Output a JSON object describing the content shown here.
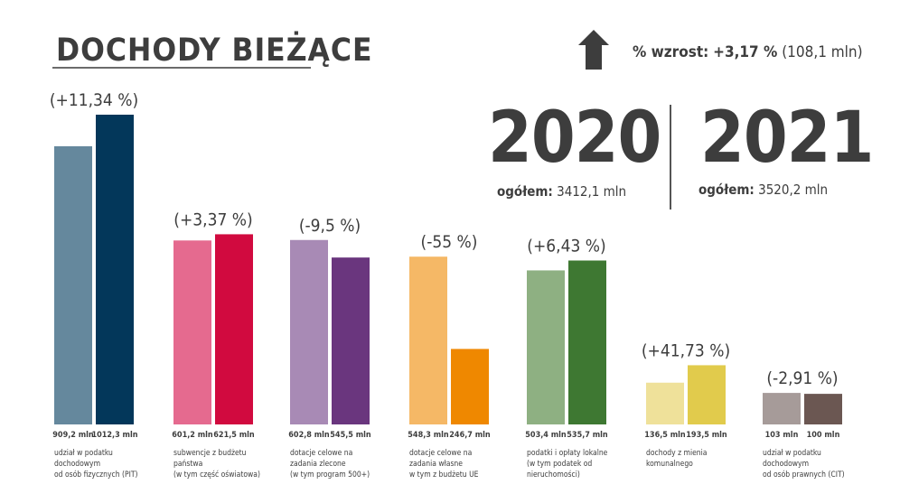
{
  "header": {
    "title": "DOCHODY BIEŻĄCE",
    "growth_label": "% wzrost:",
    "growth_value": "+3,17 %",
    "growth_amount": "(108,1 mln)",
    "arrow_icon": "up-arrow-icon"
  },
  "totals": {
    "year_a": "2020",
    "year_b": "2021",
    "label": "ogółem:",
    "total_a": "3412,1 mln",
    "total_b": "3520,2 mln"
  },
  "chart_data": {
    "type": "bar",
    "unit": "mln",
    "series": [
      {
        "name": "2020",
        "values": [
          909.2,
          601.2,
          602.8,
          548.3,
          503.4,
          136.5,
          103
        ]
      },
      {
        "name": "2021",
        "values": [
          1012.3,
          621.5,
          545.5,
          246.7,
          535.7,
          193.5,
          100
        ]
      }
    ],
    "categories": [
      "udział w podatku dochodowym od osób fizycznych (PIT)",
      "subwencje z budżetu państwa (w tym część oświatowa)",
      "dotacje celowe na zadania zlecone (w tym program 500+)",
      "dotacje celowe na zadania własne w tym z budżetu UE",
      "podatki i opłaty lokalne (w tym podatek od nieruchomości)",
      "dochody z mienia komunalnego",
      "udział w podatku dochodowym od osób prawnych (CIT)"
    ],
    "category_lines": [
      [
        "udział w podatku",
        "dochodowym",
        "od osób fizycznych (PIT)"
      ],
      [
        "subwencje z budżetu",
        "państwa",
        "(w tym część oświatowa)"
      ],
      [
        "dotacje celowe na",
        "zadania zlecone",
        "(w tym program 500+)"
      ],
      [
        "dotacje celowe na",
        "zadania własne",
        "w tym z budżetu UE"
      ],
      [
        "podatki i opłaty lokalne",
        "(w tym podatek od",
        "nieruchomości)"
      ],
      [
        "dochody z mienia",
        "komunalnego"
      ],
      [
        "udział w podatku",
        "dochodowym",
        "od osób prawnych (CIT)"
      ]
    ],
    "value_labels_a": [
      "909,2 mln",
      "601,2 mln",
      "602,8 mln",
      "548,3 mln",
      "503,4 mln",
      "136,5 mln",
      "103 mln"
    ],
    "value_labels_b": [
      "1012,3 mln",
      "621,5 mln",
      "545,5 mln",
      "246,7 mln",
      "535,7 mln",
      "193,5 mln",
      "100 mln"
    ],
    "change_labels": [
      "(+11,34 %)",
      "(+3,37 %)",
      "(-9,5 %)",
      "(-55 %)",
      "(+6,43 %)",
      "(+41,73 %)",
      "(-2,91 %)"
    ],
    "colors_a": [
      "#65889d",
      "#e56a8f",
      "#a88ab5",
      "#f5b866",
      "#8eb082",
      "#efe19a",
      "#a69b99"
    ],
    "colors_b": [
      "#03375a",
      "#d10a3f",
      "#6a367e",
      "#ef8800",
      "#3e7832",
      "#e1cb4c",
      "#6b5752"
    ],
    "ylim": [
      0,
      1012.3
    ],
    "grid": false
  }
}
